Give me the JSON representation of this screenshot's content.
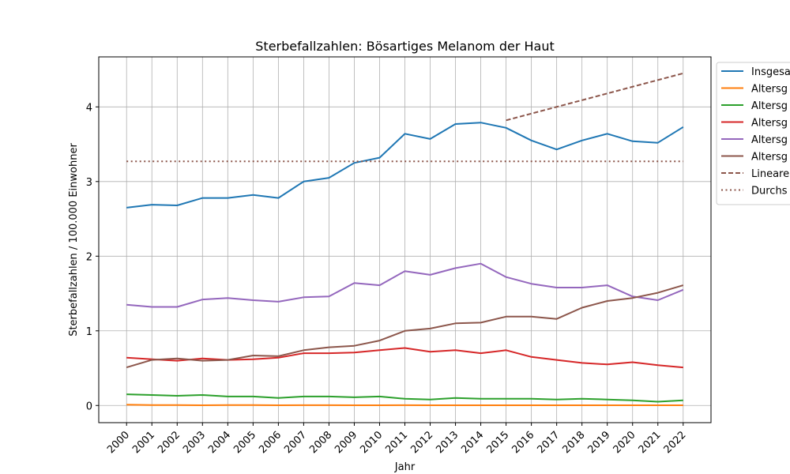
{
  "chart_data": {
    "type": "line",
    "title": "Sterbefallzahlen: Bösartiges Melanom der Haut",
    "xlabel": "Jahr",
    "ylabel": "Sterbefallzahlen / 100.000 Einwohner",
    "x": [
      2000,
      2001,
      2002,
      2003,
      2004,
      2005,
      2006,
      2007,
      2008,
      2009,
      2010,
      2011,
      2012,
      2013,
      2014,
      2015,
      2016,
      2017,
      2018,
      2019,
      2020,
      2021,
      2022
    ],
    "x_tick_labels": [
      "2000",
      "2001",
      "2002",
      "2003",
      "2004",
      "2005",
      "2006",
      "2007",
      "2008",
      "2009",
      "2010",
      "2011",
      "2012",
      "2013",
      "2014",
      "2015",
      "2016",
      "2017",
      "2018",
      "2019",
      "2020",
      "2021",
      "2022"
    ],
    "yticks": [
      0,
      1,
      2,
      3,
      4
    ],
    "y_tick_labels": [
      "0",
      "1",
      "2",
      "3",
      "4"
    ],
    "ylim": [
      -0.23,
      4.67
    ],
    "grid": true,
    "legend_position": "right",
    "series": [
      {
        "name": "Insgesa",
        "color": "#1f77b4",
        "style": "solid",
        "values": [
          2.65,
          2.69,
          2.68,
          2.78,
          2.78,
          2.82,
          2.78,
          3.0,
          3.05,
          3.25,
          3.32,
          3.64,
          3.57,
          3.77,
          3.79,
          3.72,
          3.55,
          3.43,
          3.55,
          3.64,
          3.54,
          3.52,
          3.73
        ]
      },
      {
        "name": "Altersg",
        "color": "#ff7f0e",
        "style": "solid",
        "values": [
          0.01,
          0.005,
          0.005,
          0.003,
          0.005,
          0.005,
          0.003,
          0.004,
          0.004,
          0.003,
          0.003,
          0.004,
          0.003,
          0.003,
          0.003,
          0.003,
          0.003,
          0.003,
          0.003,
          0.003,
          0.003,
          0.003,
          0.003
        ]
      },
      {
        "name": "Altersg",
        "color": "#2ca02c",
        "style": "solid",
        "values": [
          0.15,
          0.14,
          0.13,
          0.14,
          0.12,
          0.12,
          0.1,
          0.12,
          0.12,
          0.11,
          0.12,
          0.09,
          0.08,
          0.1,
          0.09,
          0.09,
          0.09,
          0.08,
          0.09,
          0.08,
          0.07,
          0.05,
          0.07
        ]
      },
      {
        "name": "Altersg",
        "color": "#d62728",
        "style": "solid",
        "values": [
          0.64,
          0.62,
          0.6,
          0.63,
          0.61,
          0.62,
          0.64,
          0.7,
          0.7,
          0.71,
          0.74,
          0.77,
          0.72,
          0.74,
          0.7,
          0.74,
          0.65,
          0.61,
          0.57,
          0.55,
          0.58,
          0.54,
          0.51
        ]
      },
      {
        "name": "Altersg",
        "color": "#9467bd",
        "style": "solid",
        "values": [
          1.35,
          1.32,
          1.32,
          1.42,
          1.44,
          1.41,
          1.39,
          1.45,
          1.46,
          1.64,
          1.61,
          1.8,
          1.75,
          1.84,
          1.9,
          1.72,
          1.63,
          1.58,
          1.58,
          1.61,
          1.46,
          1.41,
          1.55
        ]
      },
      {
        "name": "Altersg",
        "color": "#8c564b",
        "style": "solid",
        "values": [
          0.51,
          0.61,
          0.63,
          0.6,
          0.61,
          0.67,
          0.66,
          0.74,
          0.78,
          0.8,
          0.87,
          1.0,
          1.03,
          1.1,
          1.11,
          1.19,
          1.19,
          1.16,
          1.31,
          1.4,
          1.44,
          1.51,
          1.61
        ]
      },
      {
        "name": "Lineare",
        "color": "#8c564b",
        "style": "dashed",
        "x": [
          2015,
          2022
        ],
        "values": [
          3.82,
          4.45
        ]
      },
      {
        "name": "Durchs",
        "color": "#8c564b",
        "style": "dotted",
        "x": [
          2000,
          2022
        ],
        "values": [
          3.27,
          3.27
        ]
      }
    ]
  }
}
